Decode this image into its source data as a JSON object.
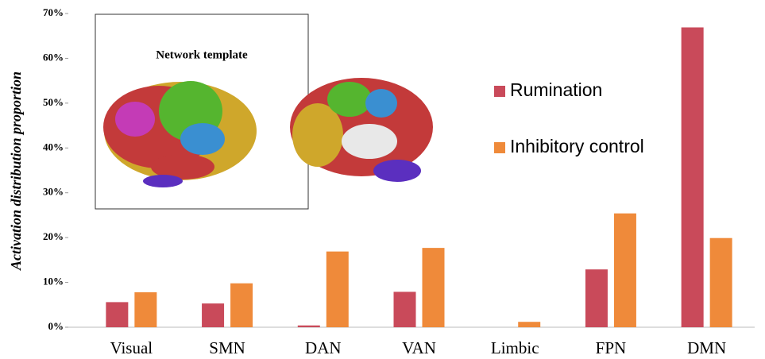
{
  "chart_data": {
    "type": "bar",
    "y_label": "Activation distribution proportion",
    "inset_title": "Network template",
    "categories": [
      "Visual",
      "SMN",
      "DAN",
      "VAN",
      "Limbic",
      "FPN",
      "DMN"
    ],
    "series": [
      {
        "name": "Rumination",
        "color": "#c94a5a",
        "values": [
          5.6,
          5.3,
          0.4,
          7.9,
          0,
          12.9,
          66.9
        ]
      },
      {
        "name": "Inhibitory control",
        "color": "#ef8a3a",
        "values": [
          7.8,
          9.8,
          16.9,
          17.7,
          1.2,
          25.4,
          19.9
        ]
      }
    ],
    "ylim": [
      0,
      70
    ],
    "yticks": [
      {
        "value": 0,
        "label": "0%"
      },
      {
        "value": 10,
        "label": "10%"
      },
      {
        "value": 20,
        "label": "20%"
      },
      {
        "value": 30,
        "label": "30%"
      },
      {
        "value": 40,
        "label": "40%"
      },
      {
        "value": 50,
        "label": "50%"
      },
      {
        "value": 60,
        "label": "60%"
      },
      {
        "value": 70,
        "label": "70%"
      }
    ],
    "grid": false
  }
}
